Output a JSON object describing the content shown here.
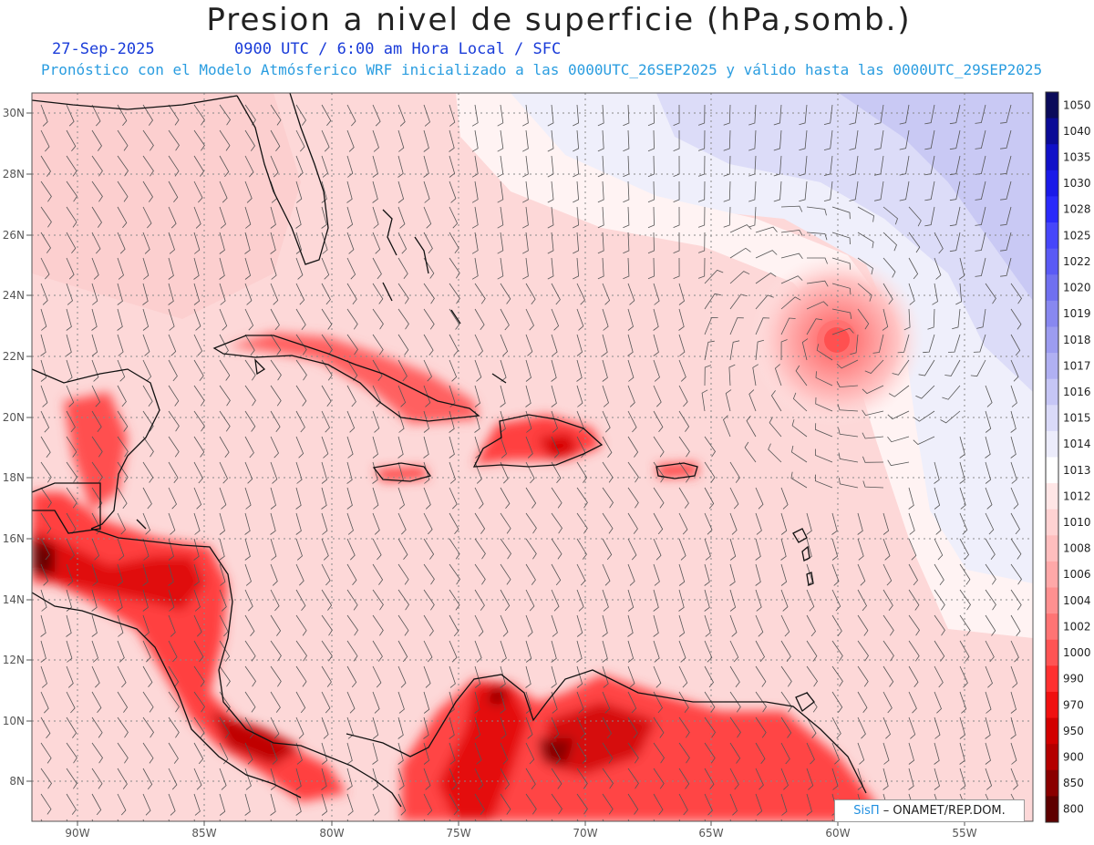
{
  "header": {
    "title": "Presion a nivel de superficie (hPa,somb.)",
    "date": "27-Sep-2025",
    "valid_time": "0900 UTC / 6:00 am Hora Local / SFC",
    "model_info": "Pronóstico con el Modelo Atmósferico WRF inicializado a las 0000UTC_26SEP2025 y válido hasta las  0000UTC_29SEP2025"
  },
  "map": {
    "lat_labels": [
      "30N",
      "28N",
      "26N",
      "24N",
      "22N",
      "20N",
      "18N",
      "16N",
      "14N",
      "12N",
      "10N",
      "8N"
    ],
    "lon_labels": [
      "90W",
      "85W",
      "80W",
      "75W",
      "70W",
      "65W",
      "60W",
      "55W"
    ],
    "low_center": {
      "lat": 22.5,
      "lon": -60.0
    }
  },
  "colorbar": {
    "levels": [
      "1050",
      "1040",
      "1035",
      "1030",
      "1028",
      "1025",
      "1022",
      "1020",
      "1019",
      "1018",
      "1017",
      "1016",
      "1015",
      "1014",
      "1013",
      "1012",
      "1010",
      "1008",
      "1006",
      "1004",
      "1002",
      "1000",
      "990",
      "970",
      "950",
      "900",
      "850",
      "800"
    ],
    "colors": [
      "#0a0a5a",
      "#0a0a96",
      "#1010c8",
      "#1a1ae8",
      "#2a2afa",
      "#4646fa",
      "#5a5af5",
      "#7070f0",
      "#8888f0",
      "#9c9cf0",
      "#b0b0f2",
      "#c6c6f5",
      "#dadaf8",
      "#ececfb",
      "#ffffff",
      "#ffe6e6",
      "#ffd2d2",
      "#ffbebe",
      "#ffa8a8",
      "#ff9090",
      "#ff7474",
      "#ff5454",
      "#ff3030",
      "#f01010",
      "#d20000",
      "#b40000",
      "#8a0000",
      "#5e0000"
    ]
  },
  "credit": {
    "brand": "SisΠ",
    "org": "– ONAMET/REP.DOM."
  }
}
